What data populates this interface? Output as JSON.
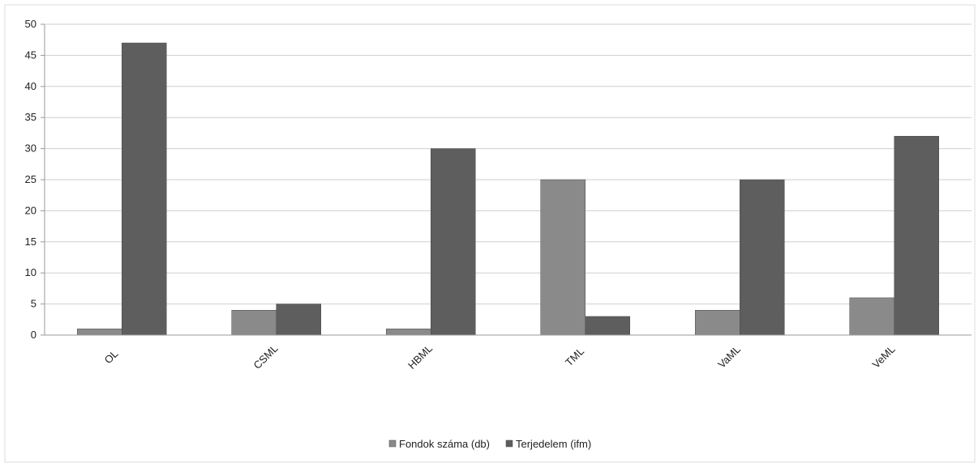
{
  "chart_data": {
    "type": "bar",
    "categories": [
      "OL",
      "CSML",
      "HBML",
      "TML",
      "VaML",
      "VeML"
    ],
    "series": [
      {
        "name": "Fondok száma (db)",
        "values": [
          1,
          4,
          1,
          25,
          4,
          6
        ],
        "color": "#8a8a8a"
      },
      {
        "name": "Terjedelem (ifm)",
        "values": [
          47,
          5,
          30,
          3,
          25,
          32
        ],
        "color": "#5e5e5e"
      }
    ],
    "ylim": [
      0,
      50
    ],
    "yticks": [
      0,
      5,
      10,
      15,
      20,
      25,
      30,
      35,
      40,
      45,
      50
    ],
    "grid": true,
    "legend": "bottom"
  }
}
